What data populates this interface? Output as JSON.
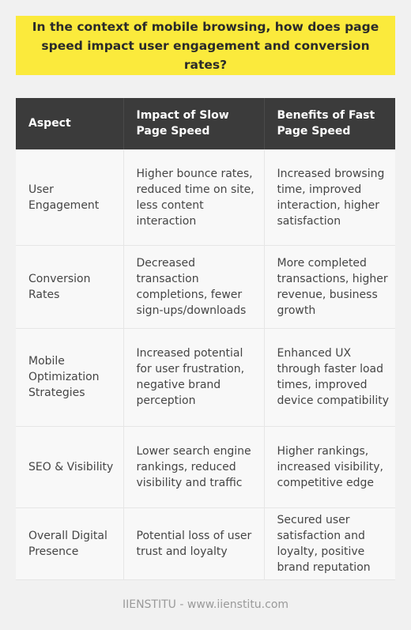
{
  "title": "In the context of mobile browsing, how does page speed impact user engagement and conversion rates?",
  "table": {
    "headers": [
      "Aspect",
      "Impact of Slow Page Speed",
      "Benefits of Fast Page Speed"
    ],
    "rows": [
      [
        "User Engagement",
        "Higher bounce rates, reduced time on site, less content interaction",
        "Increased browsing time, improved interaction, higher satisfaction"
      ],
      [
        "Conversion Rates",
        "Decreased transaction completions, fewer sign-ups/downloads",
        "More completed transactions, higher revenue, business growth"
      ],
      [
        "Mobile Optimization Strategies",
        "Increased potential for user frustration, negative brand perception",
        "Enhanced UX through faster load times, improved device compatibility"
      ],
      [
        "SEO & Visibility",
        "Lower search engine rankings, reduced visibility and traffic",
        "Higher rankings, increased visibility, competitive edge"
      ],
      [
        "Overall Digital Presence",
        "Potential loss of user trust and loyalty",
        "Secured user satisfaction and loyalty, positive brand reputation"
      ]
    ]
  },
  "footer": "IIENSTITU - www.iienstitu.com"
}
